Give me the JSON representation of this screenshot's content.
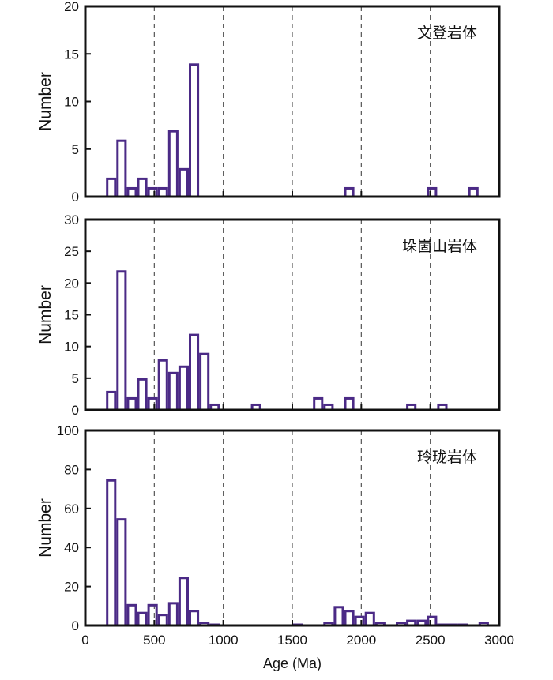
{
  "chart_data": [
    {
      "type": "bar",
      "title": "文登岩体",
      "xlabel": "",
      "ylabel": "Number",
      "xlim": [
        0,
        3000
      ],
      "ylim": [
        0,
        20
      ],
      "yticks": [
        0,
        5,
        10,
        15,
        20
      ],
      "bin_width": 75,
      "bars": [
        {
          "x": 150,
          "value": 2
        },
        {
          "x": 225,
          "value": 6
        },
        {
          "x": 300,
          "value": 1
        },
        {
          "x": 375,
          "value": 2
        },
        {
          "x": 450,
          "value": 1
        },
        {
          "x": 525,
          "value": 1
        },
        {
          "x": 600,
          "value": 7
        },
        {
          "x": 675,
          "value": 3
        },
        {
          "x": 750,
          "value": 14
        },
        {
          "x": 1875,
          "value": 1
        },
        {
          "x": 2475,
          "value": 1
        },
        {
          "x": 2775,
          "value": 1
        }
      ]
    },
    {
      "type": "bar",
      "title": "垛崮山岩体",
      "xlabel": "",
      "ylabel": "Number",
      "xlim": [
        0,
        3000
      ],
      "ylim": [
        0,
        30
      ],
      "yticks": [
        0,
        5,
        10,
        15,
        20,
        25,
        30
      ],
      "bin_width": 75,
      "bars": [
        {
          "x": 150,
          "value": 3
        },
        {
          "x": 225,
          "value": 22
        },
        {
          "x": 300,
          "value": 2
        },
        {
          "x": 375,
          "value": 5
        },
        {
          "x": 450,
          "value": 2
        },
        {
          "x": 525,
          "value": 8
        },
        {
          "x": 600,
          "value": 6
        },
        {
          "x": 675,
          "value": 7
        },
        {
          "x": 750,
          "value": 12
        },
        {
          "x": 825,
          "value": 9
        },
        {
          "x": 900,
          "value": 1
        },
        {
          "x": 1200,
          "value": 1
        },
        {
          "x": 1650,
          "value": 2
        },
        {
          "x": 1725,
          "value": 1
        },
        {
          "x": 1875,
          "value": 2
        },
        {
          "x": 2325,
          "value": 1
        },
        {
          "x": 2550,
          "value": 1
        }
      ]
    },
    {
      "type": "bar",
      "title": "玲珑岩体",
      "xlabel": "Age (Ma)",
      "ylabel": "Number",
      "xlim": [
        0,
        3000
      ],
      "ylim": [
        0,
        100
      ],
      "yticks": [
        0,
        20,
        40,
        60,
        80,
        100
      ],
      "xticks": [
        0,
        500,
        1000,
        1500,
        2000,
        2500,
        3000
      ],
      "bin_width": 75,
      "bars": [
        {
          "x": 150,
          "value": 75
        },
        {
          "x": 225,
          "value": 55
        },
        {
          "x": 300,
          "value": 11
        },
        {
          "x": 375,
          "value": 7
        },
        {
          "x": 450,
          "value": 11
        },
        {
          "x": 525,
          "value": 6
        },
        {
          "x": 600,
          "value": 12
        },
        {
          "x": 675,
          "value": 25
        },
        {
          "x": 750,
          "value": 8
        },
        {
          "x": 825,
          "value": 2
        },
        {
          "x": 900,
          "value": 1
        },
        {
          "x": 1500,
          "value": 1
        },
        {
          "x": 1725,
          "value": 2
        },
        {
          "x": 1800,
          "value": 10
        },
        {
          "x": 1875,
          "value": 8
        },
        {
          "x": 1950,
          "value": 5
        },
        {
          "x": 2025,
          "value": 7
        },
        {
          "x": 2100,
          "value": 2
        },
        {
          "x": 2250,
          "value": 2
        },
        {
          "x": 2325,
          "value": 3
        },
        {
          "x": 2400,
          "value": 3
        },
        {
          "x": 2475,
          "value": 5
        },
        {
          "x": 2550,
          "value": 1
        },
        {
          "x": 2625,
          "value": 1
        },
        {
          "x": 2700,
          "value": 1
        },
        {
          "x": 2850,
          "value": 2
        }
      ]
    }
  ],
  "colors": {
    "bar_stroke": "#4b2a86",
    "axis": "#111111",
    "grid": "#555555"
  },
  "reference_lines": [
    500,
    1000,
    1500,
    2000,
    2500
  ]
}
